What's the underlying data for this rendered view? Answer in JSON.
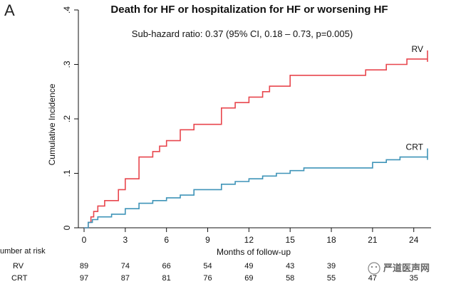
{
  "panel_letter": "A",
  "watermark_text": "严道医声网",
  "colors": {
    "rv": "#e8464d",
    "crt": "#3f94b8",
    "axis": "#111111"
  },
  "chart_data": {
    "type": "line",
    "step": true,
    "title": "Death for HF or hospitalization for HF or worsening HF",
    "subtitle": "Sub-hazard ratio: 0.37 (95% CI, 0.18 – 0.73, p=0.005)",
    "xlabel": "Months of follow-up",
    "ylabel": "Cumulative Incidence",
    "xlim": [
      0,
      25
    ],
    "ylim": [
      0,
      0.4
    ],
    "x_ticks": [
      "0",
      "3",
      "6",
      "9",
      "12",
      "15",
      "18",
      "21",
      "24"
    ],
    "y_ticks": [
      "0",
      ".1",
      ".2",
      ".3",
      ".4"
    ],
    "grid": false,
    "series": [
      {
        "name": "RV",
        "color": "#e8464d",
        "points": [
          [
            0,
            0
          ],
          [
            0.3,
            0.01
          ],
          [
            0.5,
            0.02
          ],
          [
            0.7,
            0.03
          ],
          [
            1.0,
            0.04
          ],
          [
            1.5,
            0.05
          ],
          [
            2.5,
            0.07
          ],
          [
            3.0,
            0.09
          ],
          [
            4.0,
            0.13
          ],
          [
            5.0,
            0.14
          ],
          [
            5.5,
            0.15
          ],
          [
            6.0,
            0.16
          ],
          [
            7.0,
            0.18
          ],
          [
            8.0,
            0.19
          ],
          [
            10.0,
            0.22
          ],
          [
            11.0,
            0.23
          ],
          [
            12.0,
            0.24
          ],
          [
            13.0,
            0.25
          ],
          [
            13.5,
            0.26
          ],
          [
            15.0,
            0.28
          ],
          [
            20.5,
            0.29
          ],
          [
            22.0,
            0.3
          ],
          [
            23.5,
            0.31
          ],
          [
            25.0,
            0.31
          ]
        ]
      },
      {
        "name": "CRT",
        "color": "#3f94b8",
        "points": [
          [
            0,
            0
          ],
          [
            0.3,
            0.01
          ],
          [
            0.6,
            0.015
          ],
          [
            1.0,
            0.02
          ],
          [
            2.0,
            0.025
          ],
          [
            3.0,
            0.035
          ],
          [
            4.0,
            0.045
          ],
          [
            5.0,
            0.05
          ],
          [
            6.0,
            0.055
          ],
          [
            7.0,
            0.06
          ],
          [
            8.0,
            0.07
          ],
          [
            10.0,
            0.08
          ],
          [
            11.0,
            0.085
          ],
          [
            12.0,
            0.09
          ],
          [
            13.0,
            0.095
          ],
          [
            14.0,
            0.1
          ],
          [
            15.0,
            0.105
          ],
          [
            16.0,
            0.11
          ],
          [
            21.0,
            0.12
          ],
          [
            22.0,
            0.125
          ],
          [
            23.0,
            0.13
          ],
          [
            25.0,
            0.13
          ]
        ]
      }
    ],
    "risk_table": {
      "label": "umber at risk",
      "rows": [
        {
          "label": "RV",
          "values": [
            "89",
            "74",
            "66",
            "54",
            "49",
            "43",
            "39",
            "",
            ""
          ]
        },
        {
          "label": "CRT",
          "values": [
            "97",
            "87",
            "81",
            "76",
            "69",
            "58",
            "55",
            "47",
            "35"
          ]
        }
      ]
    }
  }
}
